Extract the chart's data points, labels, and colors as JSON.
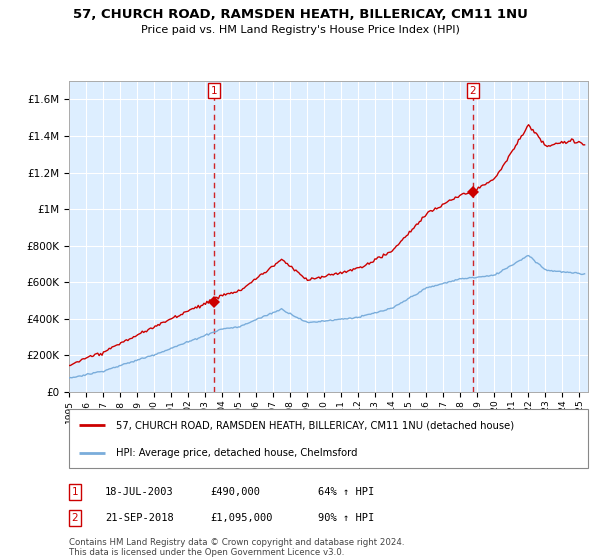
{
  "title": "57, CHURCH ROAD, RAMSDEN HEATH, BILLERICAY, CM11 1NU",
  "subtitle": "Price paid vs. HM Land Registry's House Price Index (HPI)",
  "property_label": "57, CHURCH ROAD, RAMSDEN HEATH, BILLERICAY, CM11 1NU (detached house)",
  "hpi_label": "HPI: Average price, detached house, Chelmsford",
  "annotation1": {
    "num": "1",
    "date": "18-JUL-2003",
    "price": "£490,000",
    "pct": "64% ↑ HPI"
  },
  "annotation2": {
    "num": "2",
    "date": "21-SEP-2018",
    "price": "£1,095,000",
    "pct": "90% ↑ HPI"
  },
  "property_color": "#cc0000",
  "hpi_color": "#7aaddb",
  "vline_color": "#cc0000",
  "bg_color": "#ddeeff",
  "ylim": [
    0,
    1700000
  ],
  "yticks": [
    0,
    200000,
    400000,
    600000,
    800000,
    1000000,
    1200000,
    1400000,
    1600000
  ],
  "ytick_labels": [
    "£0",
    "£200K",
    "£400K",
    "£600K",
    "£800K",
    "£1M",
    "£1.2M",
    "£1.4M",
    "£1.6M"
  ],
  "footer": "Contains HM Land Registry data © Crown copyright and database right 2024.\nThis data is licensed under the Open Government Licence v3.0.",
  "sale1_x": 2003.54,
  "sale1_y": 490000,
  "sale2_x": 2018.72,
  "sale2_y": 1095000,
  "xmin": 1995.0,
  "xmax": 2025.5
}
